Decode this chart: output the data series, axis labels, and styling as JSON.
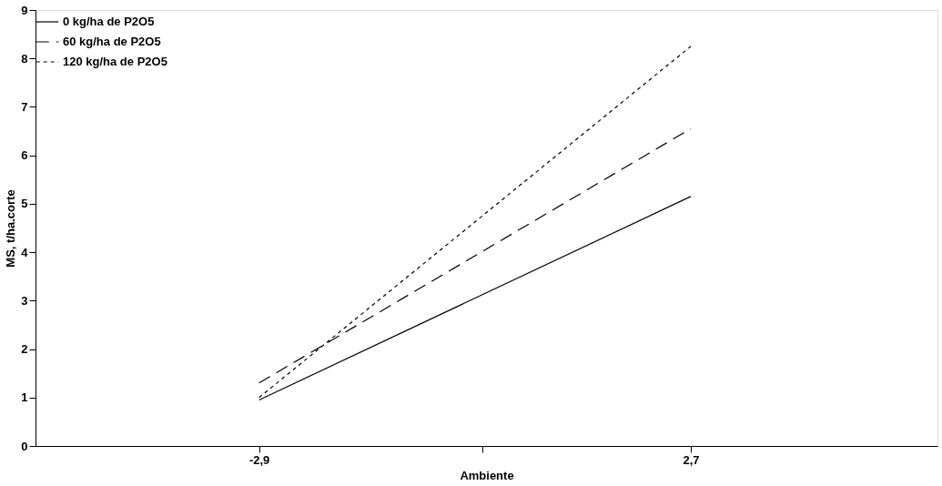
{
  "chart_data": {
    "type": "line",
    "xlabel": "Ambiente",
    "ylabel": "MS, t/ha.corte",
    "xlim": [
      -5.8,
      5.9
    ],
    "xticks": [
      {
        "value": -2.9,
        "label": "-2,9"
      },
      {
        "value": 0,
        "label": null
      },
      {
        "value": 2.7,
        "label": "2,7"
      }
    ],
    "ylim": [
      0,
      9
    ],
    "yticks": [
      0,
      1,
      2,
      3,
      4,
      5,
      6,
      7,
      8,
      9
    ],
    "x": [
      -2.9,
      2.7
    ],
    "series": [
      {
        "name": "0 kg/ha de P2O5",
        "color": "#000000",
        "line_style": "solid",
        "values": [
          0.95,
          5.15
        ]
      },
      {
        "name": "60 kg/ha de P2O5",
        "color": "#000000",
        "line_style": "dashed",
        "values": [
          1.3,
          6.55
        ]
      },
      {
        "name": "120 kg/ha de P2O5",
        "color": "#000000",
        "line_style": "dotted",
        "values": [
          1.0,
          8.25
        ]
      }
    ],
    "grid": false,
    "legend": "top left",
    "marker": "none"
  }
}
